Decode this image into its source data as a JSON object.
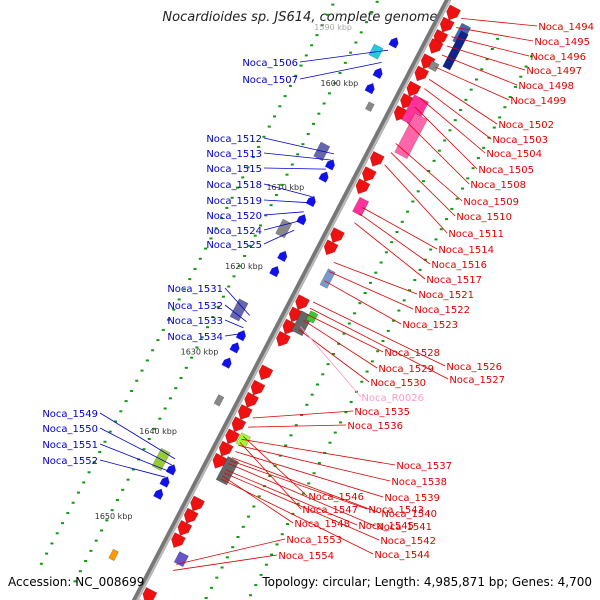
{
  "title": "Nocardioides sp. JS614, complete genome",
  "footer": {
    "accession": "Accession: NC_008699",
    "topology": "Topology: circular; Length: 4,985,871 bp; Genes: 4,700"
  },
  "colors": {
    "forward_label": "#0000cc",
    "reverse_label": "#e00000",
    "rna_label": "#ff99cc",
    "forward_gene": "#1111ee",
    "reverse_gene": "#ee1111",
    "backbone": "#888888",
    "ticks": "#119911"
  },
  "scale_labels": [
    "1600 kbp",
    "1610 kbp",
    "1620 kbp",
    "1630 kbp",
    "1640 kbp",
    "1650 kbp"
  ],
  "top_scale_fragment": "1590 kbp",
  "forward_labels": [
    "Noca_1506",
    "Noca_1507",
    "Noca_1512",
    "Noca_1513",
    "Noca_1515",
    "Noca_1518",
    "Noca_1519",
    "Noca_1520",
    "Noca_1524",
    "Noca_1525",
    "Noca_1531",
    "Noca_1532",
    "Noca_1533",
    "Noca_1534",
    "Noca_1549",
    "Noca_1550",
    "Noca_1551",
    "Noca_1552"
  ],
  "reverse_labels": [
    "Noca_1494",
    "Noca_1495",
    "Noca_1496",
    "Noca_1497",
    "Noca_1498",
    "Noca_1499",
    "Noca_1502",
    "Noca_1503",
    "Noca_1504",
    "Noca_1505",
    "Noca_1508",
    "Noca_1509",
    "Noca_1510",
    "Noca_1511",
    "Noca_1514",
    "Noca_1516",
    "Noca_1517",
    "Noca_1521",
    "Noca_1522",
    "Noca_1523",
    "Noca_1528",
    "Noca_1526",
    "Noca_1529",
    "Noca_1527",
    "Noca_1530",
    "Noca_R0026",
    "Noca_1535",
    "Noca_1536",
    "Noca_1537",
    "Noca_1538",
    "Noca_1539",
    "Noca_1546",
    "Noca_1540",
    "Noca_1547",
    "Noca_1543",
    "Noca_1541",
    "Noca_1545",
    "Noca_1548",
    "Noca_1542",
    "Noca_1553",
    "Noca_1544",
    "Noca_1554"
  ]
}
